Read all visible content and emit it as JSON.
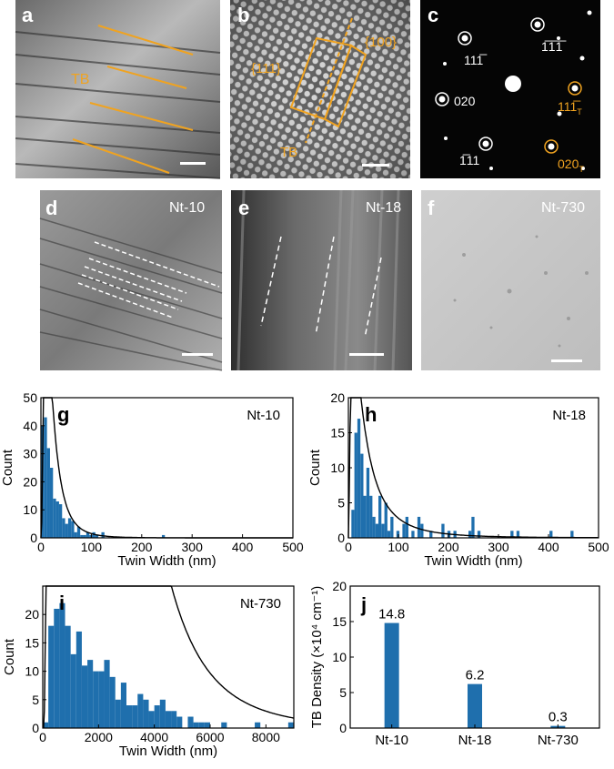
{
  "panels": {
    "a": {
      "letter": "a",
      "tb_label": "TB"
    },
    "b": {
      "letter": "b",
      "plane_111": "{111}",
      "plane_100": "{100}",
      "tb_label": "TB"
    },
    "c": {
      "letter": "c",
      "spot_labels": [
        "111̅",
        "1̅1̅1̅",
        "020",
        "1̅11",
        "111̅",
        "020"
      ],
      "twin_subscript": "T"
    },
    "d": {
      "letter": "d",
      "sample": "Nt-10"
    },
    "e": {
      "letter": "e",
      "sample": "Nt-18"
    },
    "f": {
      "letter": "f",
      "sample": "Nt-730"
    }
  },
  "colors": {
    "accent": "#f0a320",
    "bar": "#1f6fad",
    "fit": "#000000"
  },
  "chart_data": [
    {
      "id": "g",
      "type": "bar",
      "panel_letter": "g",
      "sample": "Nt-10",
      "xlabel": "Twin Width (nm)",
      "ylabel": "Count",
      "xlim": [
        0,
        500
      ],
      "ylim": [
        0,
        50
      ],
      "xticks": [
        0,
        100,
        200,
        300,
        400,
        500
      ],
      "yticks": [
        0,
        10,
        20,
        30,
        40,
        50
      ],
      "bin_width": 6,
      "x": [
        3,
        9,
        15,
        21,
        27,
        33,
        39,
        45,
        51,
        57,
        63,
        69,
        75,
        81,
        87,
        93,
        99,
        105,
        111,
        117,
        123,
        129,
        135,
        141,
        147,
        243
      ],
      "values": [
        40,
        43,
        32,
        25,
        14,
        13,
        12,
        7,
        5,
        7,
        6,
        2,
        4,
        1,
        1,
        2,
        1,
        2,
        1,
        0,
        2,
        0,
        0,
        0,
        0,
        1
      ],
      "fit": {
        "type": "lognormal",
        "mu": 3.0,
        "sigma": 0.8,
        "scale": 380
      }
    },
    {
      "id": "h",
      "type": "bar",
      "panel_letter": "h",
      "sample": "Nt-18",
      "xlabel": "Twin Width (nm)",
      "ylabel": "Count",
      "xlim": [
        0,
        500
      ],
      "ylim": [
        0,
        20
      ],
      "xticks": [
        0,
        100,
        200,
        300,
        400,
        500
      ],
      "yticks": [
        0,
        5,
        10,
        15,
        20
      ],
      "bin_width": 6,
      "x": [
        9,
        15,
        21,
        27,
        33,
        39,
        45,
        51,
        57,
        63,
        69,
        75,
        81,
        87,
        99,
        111,
        117,
        129,
        141,
        147,
        165,
        189,
        201,
        213,
        243,
        249,
        261,
        327,
        339,
        405,
        447
      ],
      "values": [
        4,
        15,
        17,
        12,
        6,
        10,
        6,
        3,
        2,
        6,
        2,
        5,
        1,
        3,
        1,
        2,
        3,
        1,
        3,
        2,
        1,
        2,
        1,
        1,
        1,
        3,
        1,
        1,
        1,
        1,
        1
      ],
      "fit": {
        "type": "lognormal",
        "mu": 3.45,
        "sigma": 1.05,
        "scale": 225
      }
    },
    {
      "id": "i",
      "type": "bar",
      "panel_letter": "i",
      "sample": "Nt-730",
      "xlabel": "Twin Width (nm)",
      "ylabel": "Count",
      "xlim": [
        0,
        9000
      ],
      "ylim": [
        0,
        25
      ],
      "xticks": [
        0,
        2000,
        4000,
        6000,
        8000
      ],
      "yticks": [
        0,
        5,
        10,
        15,
        20
      ],
      "bin_width": 200,
      "x": [
        100,
        300,
        500,
        700,
        900,
        1100,
        1300,
        1500,
        1700,
        1900,
        2100,
        2300,
        2500,
        2700,
        2900,
        3100,
        3300,
        3500,
        3700,
        3900,
        4100,
        4300,
        4500,
        4700,
        4900,
        5300,
        5500,
        5700,
        5900,
        6500,
        7700,
        8900
      ],
      "values": [
        1,
        18,
        21,
        22,
        18,
        13,
        17,
        11,
        12,
        10,
        10,
        12,
        9,
        5,
        8,
        4,
        4,
        6,
        5,
        3,
        4,
        5,
        3,
        3,
        2,
        2,
        1,
        1,
        1,
        1,
        1,
        1
      ],
      "fit": {
        "type": "lognormal",
        "mu": 7.1,
        "sigma": 0.75,
        "scale": 5300
      }
    },
    {
      "id": "j",
      "type": "bar",
      "panel_letter": "j",
      "ylabel": "TB Density (×10⁴ cm⁻¹)",
      "categories": [
        "Nt-10",
        "Nt-18",
        "Nt-730"
      ],
      "values": [
        14.8,
        6.2,
        0.3
      ],
      "value_labels": [
        "14.8",
        "6.2",
        "0.3"
      ],
      "ylim": [
        0,
        20
      ],
      "yticks": [
        0,
        5,
        10,
        15,
        20
      ]
    }
  ]
}
